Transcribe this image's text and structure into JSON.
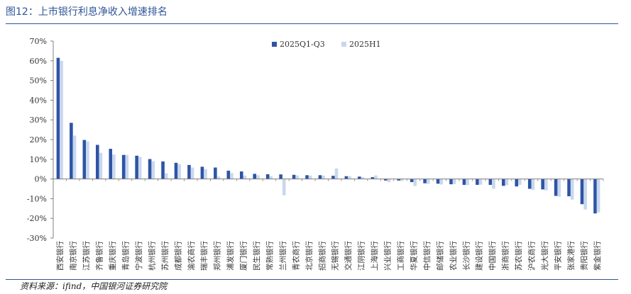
{
  "header": {
    "title": "图12：上市银行利息净收入增速排名"
  },
  "footer": {
    "source": "资料来源：ifind，中国银河证券研究院"
  },
  "colors": {
    "series1": "#2e54a6",
    "series2": "#c9d7ee",
    "title": "#2f5597",
    "axis": "#808080"
  },
  "chart_data": {
    "type": "bar",
    "title": "",
    "xlabel": "",
    "ylabel": "",
    "ylim": [
      -30,
      70
    ],
    "yticks": [
      -30,
      -20,
      -10,
      0,
      10,
      20,
      30,
      40,
      50,
      60,
      70
    ],
    "ytick_labels": [
      "-30%",
      "-20%",
      "-10%",
      "0%",
      "10%",
      "20%",
      "30%",
      "40%",
      "50%",
      "60%",
      "70%"
    ],
    "legend_position": "top-center",
    "grid": false,
    "categories": [
      "西安银行",
      "南京银行",
      "江苏银行",
      "齐鲁银行",
      "重庆银行",
      "青岛银行",
      "宁波银行",
      "杭州银行",
      "苏州银行",
      "成都银行",
      "渝农商行",
      "瑞丰银行",
      "郑州银行",
      "浦发银行",
      "厦门银行",
      "民生银行",
      "常熟银行",
      "兰州银行",
      "青农商行",
      "北京银行",
      "招商银行",
      "无锡银行",
      "交通银行",
      "江阴银行",
      "上海银行",
      "兴业银行",
      "工商银行",
      "华夏银行",
      "中信银行",
      "邮储银行",
      "农业银行",
      "长沙银行",
      "建设银行",
      "中国银行",
      "浙商银行",
      "苏农银行",
      "沪农商行",
      "光大银行",
      "平安银行",
      "张家港行",
      "贵阳银行",
      "紫金银行"
    ],
    "series": [
      {
        "name": "2025Q1-Q3",
        "values": [
          61.5,
          28.5,
          19.8,
          17.3,
          15.3,
          12.2,
          11.8,
          10.1,
          8.9,
          8.2,
          7.1,
          6.2,
          5.8,
          4.2,
          3.8,
          2.6,
          2.4,
          2.3,
          2.1,
          1.9,
          1.9,
          1.6,
          1.4,
          1.2,
          0.9,
          -0.8,
          -0.8,
          -1.6,
          -2.2,
          -2.4,
          -2.7,
          -3.0,
          -3.0,
          -3.0,
          -3.5,
          -3.8,
          -5.0,
          -5.3,
          -8.6,
          -8.8,
          -12.8,
          -17.5
        ]
      },
      {
        "name": "2025H1",
        "values": [
          60.0,
          22.0,
          19.0,
          13.3,
          12.4,
          12.2,
          11.2,
          9.0,
          2.9,
          7.5,
          5.8,
          5.0,
          1.2,
          3.0,
          1.7,
          1.9,
          1.4,
          -8.3,
          1.8,
          1.7,
          1.7,
          5.3,
          1.4,
          0.9,
          1.8,
          -1.6,
          -1.0,
          -3.6,
          -2.5,
          -2.8,
          -2.6,
          -3.1,
          -2.9,
          -5.0,
          -3.2,
          -3.0,
          -5.5,
          -5.8,
          -9.0,
          -10.5,
          -15.5,
          -17.0
        ]
      }
    ]
  }
}
